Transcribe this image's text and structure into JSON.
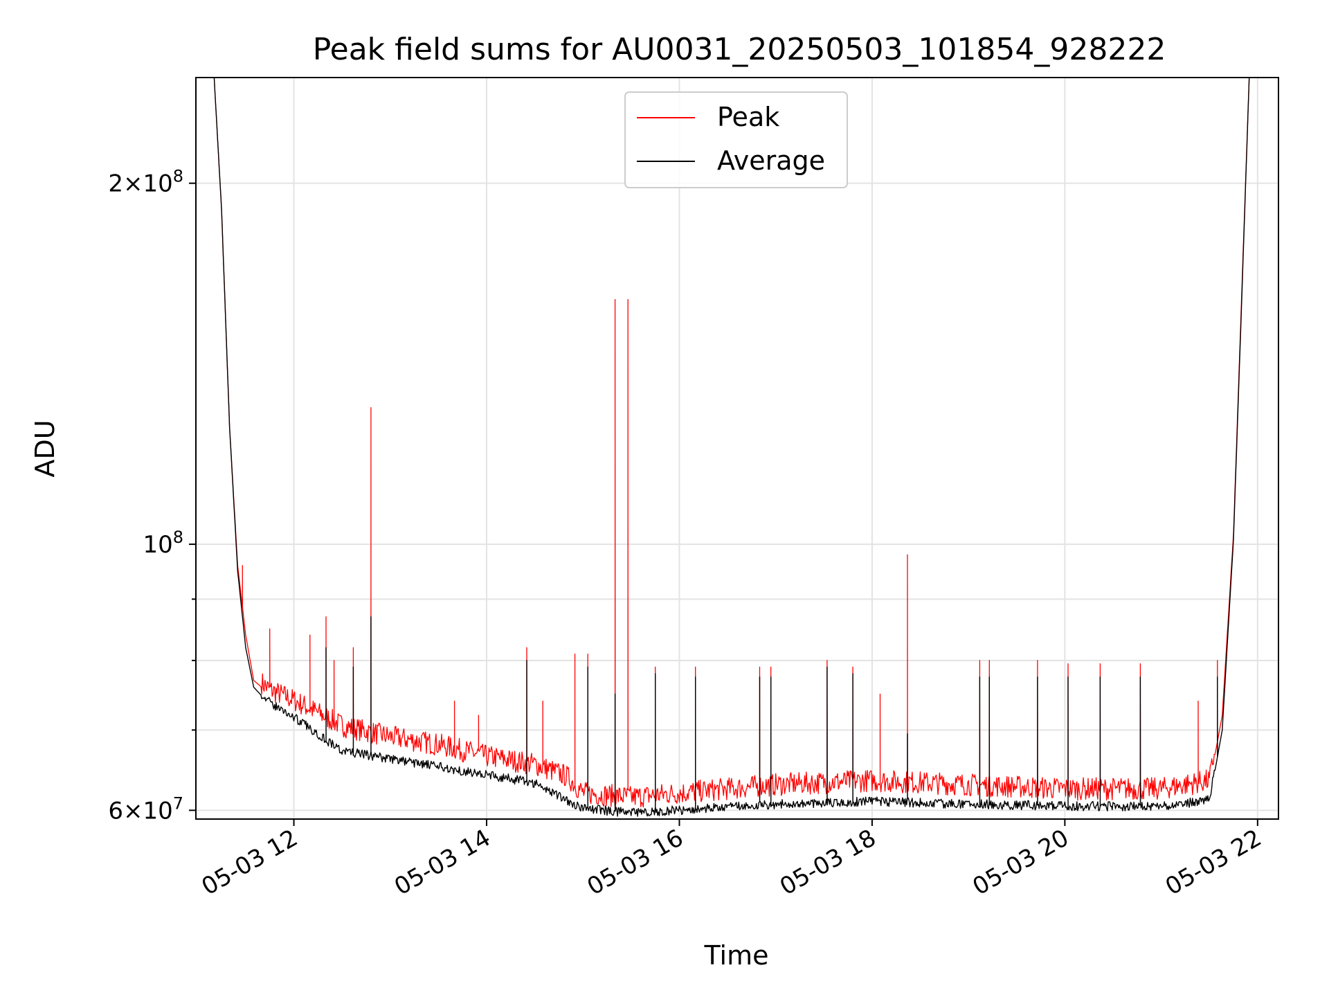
{
  "chart_data": {
    "type": "line",
    "title": "Peak field sums for AU0031_20250503_101854_928222",
    "xlabel": "Time",
    "ylabel": "ADU",
    "y_scale": "log",
    "ylim": [
      59000000,
      245000000
    ],
    "xlim": [
      "2025-05-03T10:59",
      "2025-05-03T22:13"
    ],
    "grid": true,
    "legend_position": "top-center",
    "x_ticks": [
      {
        "value": "2025-05-03T12:00",
        "label": "05-03 12"
      },
      {
        "value": "2025-05-03T14:00",
        "label": "05-03 14"
      },
      {
        "value": "2025-05-03T16:00",
        "label": "05-03 16"
      },
      {
        "value": "2025-05-03T18:00",
        "label": "05-03 18"
      },
      {
        "value": "2025-05-03T20:00",
        "label": "05-03 20"
      },
      {
        "value": "2025-05-03T22:00",
        "label": "05-03 22"
      }
    ],
    "y_ticks_major": [
      {
        "value": 60000000,
        "base": "6",
        "exp": "7"
      },
      {
        "value": 100000000,
        "base": "",
        "exp": "8"
      },
      {
        "value": 200000000,
        "base": "2",
        "exp": "8"
      }
    ],
    "y_ticks_minor": [
      70000000,
      80000000,
      90000000
    ],
    "series": [
      {
        "name": "Peak",
        "color": "#ff0000",
        "baseline": [
          [
            "2025-05-03T11:10",
            250000000
          ],
          [
            "2025-05-03T11:15",
            190000000
          ],
          [
            "2025-05-03T11:20",
            125000000
          ],
          [
            "2025-05-03T11:25",
            96000000
          ],
          [
            "2025-05-03T11:30",
            84000000
          ],
          [
            "2025-05-03T11:35",
            77000000
          ],
          [
            "2025-05-03T11:45",
            75000000
          ],
          [
            "2025-05-03T12:00",
            73500000
          ],
          [
            "2025-05-03T12:30",
            70000000
          ],
          [
            "2025-05-03T13:00",
            68500000
          ],
          [
            "2025-05-03T13:30",
            67500000
          ],
          [
            "2025-05-03T14:00",
            66000000
          ],
          [
            "2025-05-03T14:30",
            65000000
          ],
          [
            "2025-05-03T14:50",
            63500000
          ],
          [
            "2025-05-03T15:00",
            61500000
          ],
          [
            "2025-05-03T15:30",
            61000000
          ],
          [
            "2025-05-03T16:00",
            61500000
          ],
          [
            "2025-05-03T17:00",
            62500000
          ],
          [
            "2025-05-03T18:00",
            63000000
          ],
          [
            "2025-05-03T19:00",
            62500000
          ],
          [
            "2025-05-03T20:00",
            62000000
          ],
          [
            "2025-05-03T21:00",
            62000000
          ],
          [
            "2025-05-03T21:30",
            63000000
          ],
          [
            "2025-05-03T21:38",
            72000000
          ],
          [
            "2025-05-03T21:45",
            102000000
          ],
          [
            "2025-05-03T21:50",
            160000000
          ],
          [
            "2025-05-03T21:55",
            250000000
          ]
        ],
        "spikes": [
          [
            "2025-05-03T11:28",
            96000000
          ],
          [
            "2025-05-03T11:45",
            85000000
          ],
          [
            "2025-05-03T12:10",
            84000000
          ],
          [
            "2025-05-03T12:20",
            87000000
          ],
          [
            "2025-05-03T12:25",
            80000000
          ],
          [
            "2025-05-03T12:37",
            82000000
          ],
          [
            "2025-05-03T12:48",
            130000000
          ],
          [
            "2025-05-03T13:40",
            74000000
          ],
          [
            "2025-05-03T13:55",
            72000000
          ],
          [
            "2025-05-03T14:25",
            82000000
          ],
          [
            "2025-05-03T14:35",
            74000000
          ],
          [
            "2025-05-03T14:55",
            81000000
          ],
          [
            "2025-05-03T15:03",
            81000000
          ],
          [
            "2025-05-03T15:20",
            160000000
          ],
          [
            "2025-05-03T15:28",
            160000000
          ],
          [
            "2025-05-03T15:45",
            79000000
          ],
          [
            "2025-05-03T16:10",
            79000000
          ],
          [
            "2025-05-03T16:50",
            79000000
          ],
          [
            "2025-05-03T16:57",
            79000000
          ],
          [
            "2025-05-03T17:32",
            80000000
          ],
          [
            "2025-05-03T17:48",
            79000000
          ],
          [
            "2025-05-03T18:05",
            75000000
          ],
          [
            "2025-05-03T18:22",
            98000000
          ],
          [
            "2025-05-03T19:07",
            80000000
          ],
          [
            "2025-05-03T19:13",
            80000000
          ],
          [
            "2025-05-03T19:43",
            80000000
          ],
          [
            "2025-05-03T20:02",
            79500000
          ],
          [
            "2025-05-03T20:22",
            79500000
          ],
          [
            "2025-05-03T20:47",
            79500000
          ],
          [
            "2025-05-03T21:23",
            74000000
          ],
          [
            "2025-05-03T21:35",
            80000000
          ]
        ]
      },
      {
        "name": "Average",
        "color": "#000000",
        "baseline": [
          [
            "2025-05-03T11:10",
            250000000
          ],
          [
            "2025-05-03T11:15",
            190000000
          ],
          [
            "2025-05-03T11:20",
            125000000
          ],
          [
            "2025-05-03T11:25",
            95000000
          ],
          [
            "2025-05-03T11:30",
            82000000
          ],
          [
            "2025-05-03T11:35",
            76000000
          ],
          [
            "2025-05-03T11:45",
            73500000
          ],
          [
            "2025-05-03T12:00",
            71500000
          ],
          [
            "2025-05-03T12:30",
            67000000
          ],
          [
            "2025-05-03T13:00",
            66000000
          ],
          [
            "2025-05-03T13:30",
            65000000
          ],
          [
            "2025-05-03T14:00",
            64000000
          ],
          [
            "2025-05-03T14:30",
            63000000
          ],
          [
            "2025-05-03T14:50",
            61000000
          ],
          [
            "2025-05-03T15:00",
            60000000
          ],
          [
            "2025-05-03T15:30",
            59500000
          ],
          [
            "2025-05-03T16:00",
            59800000
          ],
          [
            "2025-05-03T17:00",
            60500000
          ],
          [
            "2025-05-03T18:00",
            60800000
          ],
          [
            "2025-05-03T19:00",
            60500000
          ],
          [
            "2025-05-03T20:00",
            60300000
          ],
          [
            "2025-05-03T21:00",
            60200000
          ],
          [
            "2025-05-03T21:30",
            61000000
          ],
          [
            "2025-05-03T21:38",
            70000000
          ],
          [
            "2025-05-03T21:45",
            101000000
          ],
          [
            "2025-05-03T21:50",
            158000000
          ],
          [
            "2025-05-03T21:55",
            250000000
          ]
        ],
        "spikes": [
          [
            "2025-05-03T12:20",
            82000000
          ],
          [
            "2025-05-03T12:37",
            79000000
          ],
          [
            "2025-05-03T12:48",
            87000000
          ],
          [
            "2025-05-03T14:25",
            80000000
          ],
          [
            "2025-05-03T15:03",
            79000000
          ],
          [
            "2025-05-03T15:20",
            75000000
          ],
          [
            "2025-05-03T15:45",
            78000000
          ],
          [
            "2025-05-03T16:10",
            77500000
          ],
          [
            "2025-05-03T16:50",
            77500000
          ],
          [
            "2025-05-03T16:57",
            77500000
          ],
          [
            "2025-05-03T17:32",
            79000000
          ],
          [
            "2025-05-03T17:48",
            78000000
          ],
          [
            "2025-05-03T18:22",
            69500000
          ],
          [
            "2025-05-03T19:07",
            77500000
          ],
          [
            "2025-05-03T19:13",
            77500000
          ],
          [
            "2025-05-03T19:43",
            77500000
          ],
          [
            "2025-05-03T20:02",
            77500000
          ],
          [
            "2025-05-03T20:22",
            77500000
          ],
          [
            "2025-05-03T20:47",
            77500000
          ],
          [
            "2025-05-03T21:35",
            77500000
          ]
        ]
      }
    ]
  }
}
